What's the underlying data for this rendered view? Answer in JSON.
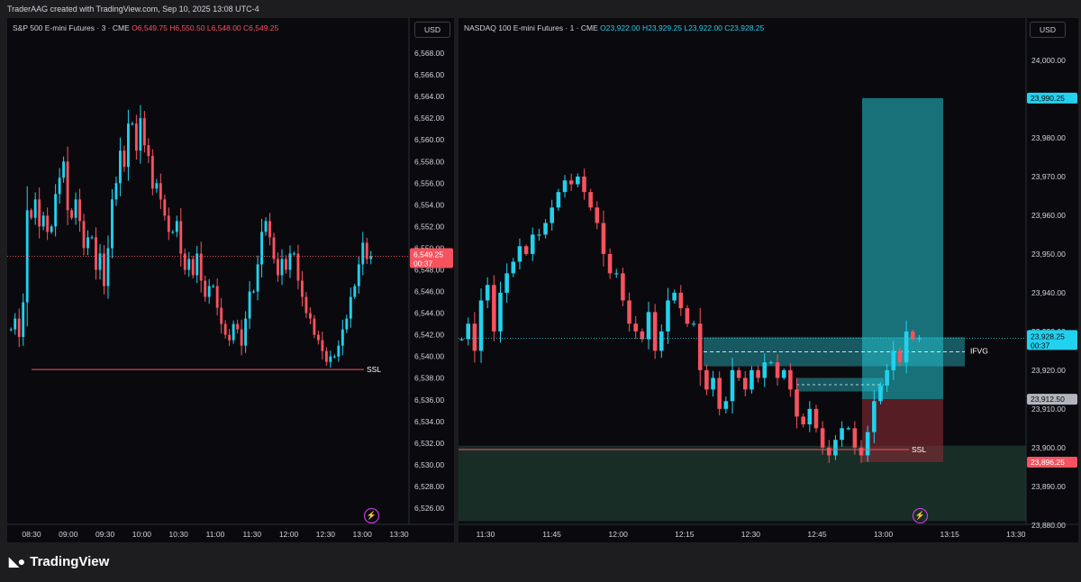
{
  "header": {
    "attribution": "TraderAAG created with TradingView.com, Sep 10, 2025 13:08 UTC-4"
  },
  "brand": {
    "name": "TradingView",
    "logo_icon": "tradingview-logo-icon"
  },
  "currency_button": "USD",
  "colors": {
    "bull": "#22d1ee",
    "bear": "#f7525f",
    "ssl": "#f7525f",
    "bg": "#0a0a0e"
  },
  "chart_data": [
    {
      "type": "candlestick",
      "title": "S&P 500 E-mini Futures · 3 · CME",
      "ohlc_legend": [
        {
          "label": "O",
          "value": "6,549.75"
        },
        {
          "label": "H",
          "value": "6,550.50"
        },
        {
          "label": "L",
          "value": "6,548.00"
        },
        {
          "label": "C",
          "value": "6,549.25"
        }
      ],
      "ylim": [
        6525,
        6569
      ],
      "y_ticks": [
        "6,568.00",
        "6,566.00",
        "6,564.00",
        "6,562.00",
        "6,560.00",
        "6,558.00",
        "6,556.00",
        "6,554.00",
        "6,552.00",
        "6,550.00",
        "6,548.00",
        "6,546.00",
        "6,544.00",
        "6,542.00",
        "6,540.00",
        "6,538.00",
        "6,536.00",
        "6,534.00",
        "6,532.00",
        "6,530.00",
        "6,528.00",
        "6,526.00"
      ],
      "x_ticks": [
        "08:30",
        "09:00",
        "09:30",
        "10:00",
        "10:30",
        "11:00",
        "11:30",
        "12:00",
        "12:30",
        "13:00",
        "13:30"
      ],
      "last_price": {
        "value": 6549.25,
        "label": "6,549.25",
        "countdown": "00:37"
      },
      "annotations": [
        {
          "text": "SSL",
          "level": 6538.8
        }
      ],
      "series": [
        {
          "segment": "08:30-09:00",
          "points": [
            6542.5,
            6543.5,
            6541.8,
            6545.0,
            6553.5,
            6552.8,
            6554.5,
            6552.0,
            6553.0,
            6551.5
          ]
        },
        {
          "segment": "09:00-09:30",
          "points": [
            6552.0,
            6555.0,
            6556.5,
            6558.0,
            6553.5,
            6552.8,
            6554.5,
            6552.5,
            6550.0,
            6551.0
          ]
        },
        {
          "segment": "09:30-10:00",
          "points": [
            6551.0,
            6548.0,
            6549.5,
            6546.5,
            6550.0,
            6554.5,
            6556.0,
            6559.0,
            6557.5,
            6561.5
          ]
        },
        {
          "segment": "10:00-10:30",
          "points": [
            6561.5,
            6559.0,
            6562.0,
            6559.5,
            6558.5,
            6555.5,
            6556.0,
            6554.5,
            6553.0,
            6551.5
          ]
        },
        {
          "segment": "10:30-11:00",
          "points": [
            6551.5,
            6552.5,
            6549.5,
            6548.0,
            6549.0,
            6547.5,
            6549.5,
            6547.0,
            6545.5,
            6546.5
          ]
        },
        {
          "segment": "11:00-11:30",
          "points": [
            6546.5,
            6544.5,
            6543.0,
            6542.0,
            6541.5,
            6543.0,
            6542.5,
            6541.0,
            6543.5,
            6546.0
          ]
        },
        {
          "segment": "11:30-12:00",
          "points": [
            6546.0,
            6548.5,
            6551.5,
            6552.5,
            6551.0,
            6549.0,
            6547.5,
            6549.0,
            6548.0,
            6549.5
          ]
        },
        {
          "segment": "12:00-12:30",
          "points": [
            6549.5,
            6547.0,
            6545.5,
            6544.0,
            6543.5,
            6542.0,
            6541.5,
            6540.5,
            6539.5,
            6540.0
          ]
        },
        {
          "segment": "12:30-13:00",
          "points": [
            6540.0,
            6541.0,
            6542.5,
            6543.5,
            6545.5,
            6546.5,
            6548.5,
            6550.5,
            6549.0,
            6549.25
          ]
        }
      ]
    },
    {
      "type": "candlestick",
      "title": "NASDAQ 100 E-mini Futures · 1 · CME",
      "ohlc_legend": [
        {
          "label": "O",
          "value": "23,922.00"
        },
        {
          "label": "H",
          "value": "23,929.25"
        },
        {
          "label": "L",
          "value": "23,922.00"
        },
        {
          "label": "C",
          "value": "23,928.25"
        }
      ],
      "ylim": [
        23876,
        24010
      ],
      "y_ticks": [
        "24,000.00",
        "23,990.00",
        "23,980.00",
        "23,970.00",
        "23,960.00",
        "23,950.00",
        "23,940.00",
        "23,930.00",
        "23,920.00",
        "23,910.00",
        "23,900.00",
        "23,890.00",
        "23,880.00"
      ],
      "x_ticks": [
        "11:30",
        "11:45",
        "12:00",
        "12:15",
        "12:30",
        "12:45",
        "13:00",
        "13:15",
        "13:30"
      ],
      "last_price": {
        "value": 23928.25,
        "label": "23,928.25",
        "countdown": "00:37"
      },
      "price_labels": [
        {
          "value": 23990.25,
          "label": "23,990.25"
        },
        {
          "value": 23912.5,
          "label": "23,912.50"
        },
        {
          "value": 23896.25,
          "label": "23,896.25"
        }
      ],
      "annotations": [
        {
          "text": "IFVG",
          "level": 23925
        },
        {
          "text": "SSL",
          "level": 23899.5
        }
      ],
      "zones": [
        {
          "name": "IFVG",
          "top": 23928.5,
          "bottom": 23921.0
        },
        {
          "name": "small-fvg",
          "top": 23918.0,
          "bottom": 23914.5
        },
        {
          "name": "demand-zone",
          "top": 23900.5,
          "bottom": 23881.0
        },
        {
          "name": "long-target",
          "top": 23990.25,
          "bottom": 23912.5
        },
        {
          "name": "long-stop",
          "top": 23912.5,
          "bottom": 23896.25
        }
      ],
      "series": [
        {
          "segment": "11:30-11:45",
          "points": [
            23928,
            23932,
            23925,
            23938,
            23942,
            23930,
            23940,
            23945,
            23948,
            23952,
            23950,
            23955
          ]
        },
        {
          "segment": "11:45-12:00",
          "points": [
            23955,
            23958,
            23962,
            23966,
            23969,
            23968,
            23970,
            23966,
            23962,
            23958,
            23950,
            23945
          ]
        },
        {
          "segment": "12:00-12:15",
          "points": [
            23945,
            23938,
            23932,
            23930,
            23928,
            23935,
            23925,
            23930,
            23938,
            23940,
            23936,
            23932
          ]
        },
        {
          "segment": "12:15-12:30",
          "points": [
            23932,
            23920,
            23915,
            23918,
            23910,
            23912,
            23920,
            23918,
            23915,
            23920,
            23918,
            23922
          ]
        },
        {
          "segment": "12:30-12:45",
          "points": [
            23922,
            23918,
            23920,
            23915,
            23908,
            23906,
            23910,
            23905,
            23900,
            23898,
            23902,
            23905
          ]
        },
        {
          "segment": "12:45-13:00",
          "points": [
            23905,
            23900,
            23898,
            23904,
            23912,
            23916,
            23920,
            23925,
            23922,
            23930,
            23928,
            23928.25
          ]
        }
      ]
    }
  ]
}
